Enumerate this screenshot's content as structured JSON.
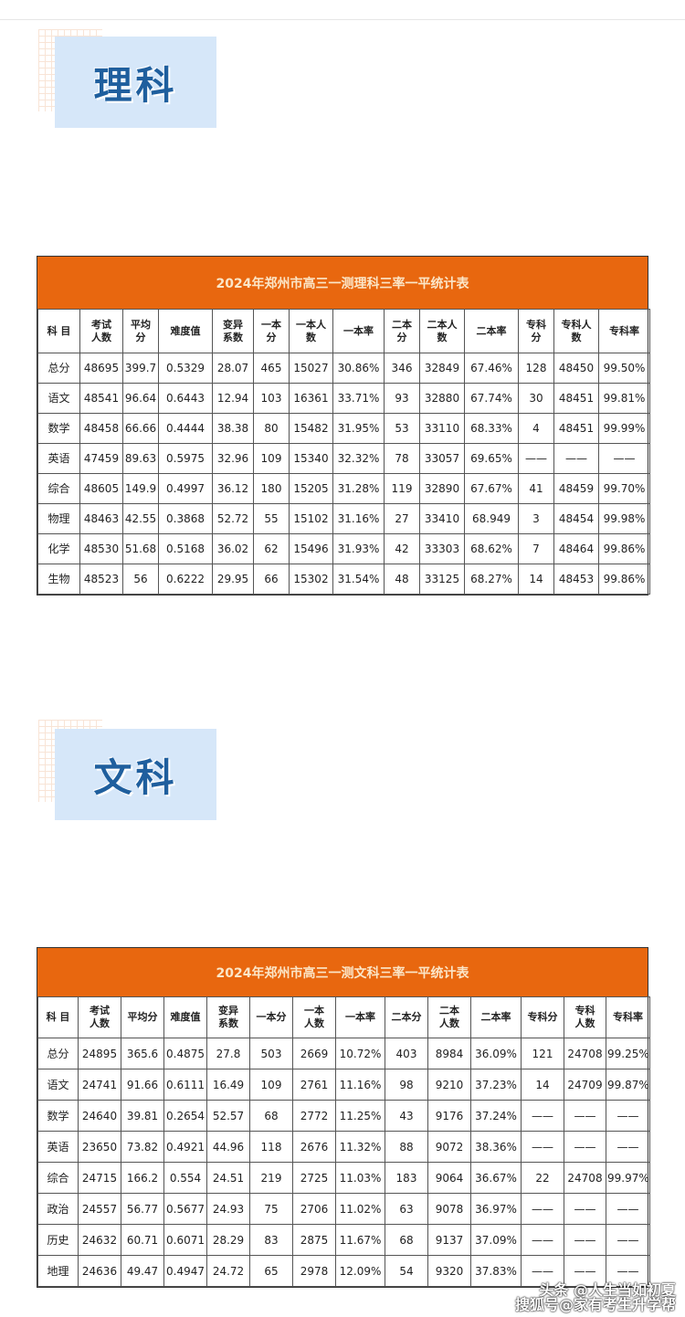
{
  "sections": [
    {
      "label": "理科",
      "table": {
        "title": "2024年郑州市高三一测理科三率一平统计表",
        "headers": [
          "科 目",
          "考试\n人数",
          "平均\n分",
          "难度值",
          "变异\n系数",
          "一本\n分",
          "一本人\n数",
          "一本率",
          "二本\n分",
          "二本人\n数",
          "二本率",
          "专科\n分",
          "专科人\n数",
          "专科率"
        ],
        "rows": [
          [
            "总分",
            "48695",
            "399.7",
            "0.5329",
            "28.07",
            "465",
            "15027",
            "30.86%",
            "346",
            "32849",
            "67.46%",
            "128",
            "48450",
            "99.50%"
          ],
          [
            "语文",
            "48541",
            "96.64",
            "0.6443",
            "12.94",
            "103",
            "16361",
            "33.71%",
            "93",
            "32880",
            "67.74%",
            "30",
            "48451",
            "99.81%"
          ],
          [
            "数学",
            "48458",
            "66.66",
            "0.4444",
            "38.38",
            "80",
            "15482",
            "31.95%",
            "53",
            "33110",
            "68.33%",
            "4",
            "48451",
            "99.99%"
          ],
          [
            "英语",
            "47459",
            "89.63",
            "0.5975",
            "32.96",
            "109",
            "15340",
            "32.32%",
            "78",
            "33057",
            "69.65%",
            "——",
            "——",
            "——"
          ],
          [
            "综合",
            "48605",
            "149.9",
            "0.4997",
            "36.12",
            "180",
            "15205",
            "31.28%",
            "119",
            "32890",
            "67.67%",
            "41",
            "48459",
            "99.70%"
          ],
          [
            "物理",
            "48463",
            "42.55",
            "0.3868",
            "52.72",
            "55",
            "15102",
            "31.16%",
            "27",
            "33410",
            "68.949",
            "3",
            "48454",
            "99.98%"
          ],
          [
            "化学",
            "48530",
            "51.68",
            "0.5168",
            "36.02",
            "62",
            "15496",
            "31.93%",
            "42",
            "33303",
            "68.62%",
            "7",
            "48464",
            "99.86%"
          ],
          [
            "生物",
            "48523",
            "56",
            "0.6222",
            "29.95",
            "66",
            "15302",
            "31.54%",
            "48",
            "33125",
            "68.27%",
            "14",
            "48453",
            "99.86%"
          ]
        ]
      }
    },
    {
      "label": "文科",
      "table": {
        "title": "2024年郑州市高三一测文科三率一平统计表",
        "headers": [
          "科 目",
          "考试\n人数",
          "平均分",
          "难度值",
          "变异\n系数",
          "一本分",
          "一本\n人数",
          "一本率",
          "二本分",
          "二本\n人数",
          "二本率",
          "专科分",
          "专科\n人数",
          "专科率"
        ],
        "rows": [
          [
            "总分",
            "24895",
            "365.6",
            "0.4875",
            "27.8",
            "503",
            "2669",
            "10.72%",
            "403",
            "8984",
            "36.09%",
            "121",
            "24708",
            "99.25%"
          ],
          [
            "语文",
            "24741",
            "91.66",
            "0.6111",
            "16.49",
            "109",
            "2761",
            "11.16%",
            "98",
            "9210",
            "37.23%",
            "14",
            "24709",
            "99.87%"
          ],
          [
            "数学",
            "24640",
            "39.81",
            "0.2654",
            "52.57",
            "68",
            "2772",
            "11.25%",
            "43",
            "9176",
            "37.24%",
            "——",
            "——",
            "——"
          ],
          [
            "英语",
            "23650",
            "73.82",
            "0.4921",
            "44.96",
            "118",
            "2676",
            "11.32%",
            "88",
            "9072",
            "38.36%",
            "——",
            "——",
            "——"
          ],
          [
            "综合",
            "24715",
            "166.2",
            "0.554",
            "24.51",
            "219",
            "2725",
            "11.03%",
            "183",
            "9064",
            "36.67%",
            "22",
            "24708",
            "99.97%"
          ],
          [
            "政治",
            "24557",
            "56.77",
            "0.5677",
            "24.93",
            "75",
            "2706",
            "11.02%",
            "63",
            "9078",
            "36.97%",
            "——",
            "——",
            "——"
          ],
          [
            "历史",
            "24632",
            "60.71",
            "0.6071",
            "28.29",
            "83",
            "2875",
            "11.67%",
            "68",
            "9137",
            "37.09%",
            "——",
            "——",
            "——"
          ],
          [
            "地理",
            "24636",
            "49.47",
            "0.4947",
            "24.72",
            "65",
            "2978",
            "12.09%",
            "54",
            "9320",
            "37.83%",
            "——",
            "——",
            "——"
          ]
        ]
      }
    }
  ],
  "watermark": {
    "line1": "头条 @人生当如初夏",
    "line2": "搜狐号@家有考生升学帮"
  },
  "colors": {
    "title_bar": "#e8670f",
    "section_bg": "#d6e7f9",
    "section_text": "#1f5f9e"
  }
}
